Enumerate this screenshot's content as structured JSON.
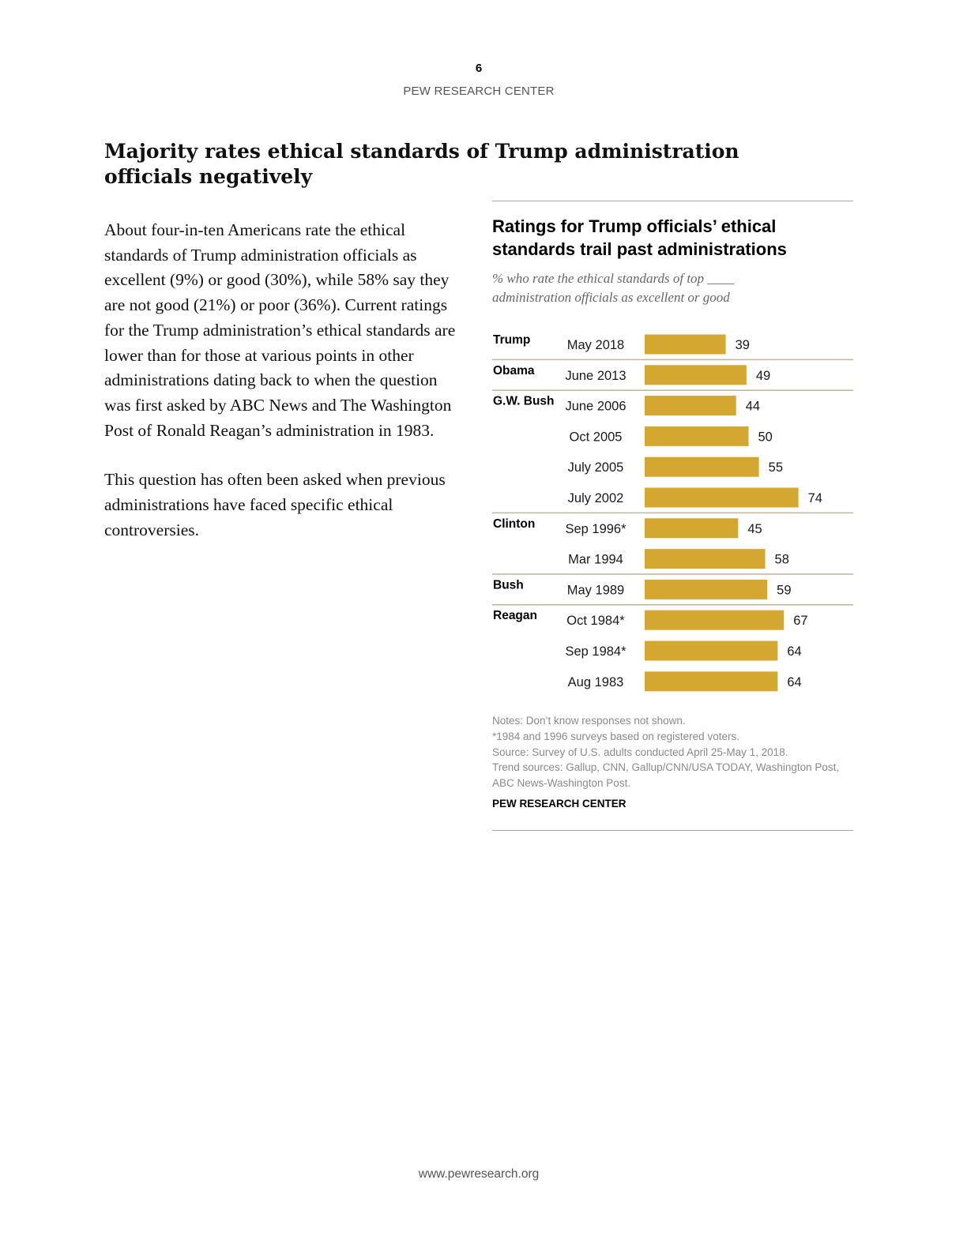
{
  "page": {
    "number": "6",
    "org": "PEW RESEARCH CENTER",
    "heading": "Majority rates ethical standards of Trump administration officials negatively",
    "paragraphs": [
      "About four-in-ten Americans rate the ethical standards of Trump administration officials as excellent (9%) or good (30%), while 58% say they are not good (21%) or poor (36%). Current ratings for the Trump administration’s ethical standards are lower than for those at various points in other administrations dating back to when the question was first asked by ABC News and The Washington Post of Ronald Reagan’s administration in 1983.",
      "This question has often been asked when previous administrations have faced specific ethical controversies."
    ],
    "footer_url": "www.pewresearch.org"
  },
  "chart_data": {
    "type": "bar",
    "orientation": "horizontal",
    "title": "Ratings for Trump officials’ ethical standards trail past administrations",
    "subtitle": "% who rate the ethical standards of top ____ administration officials as excellent or good",
    "bar_color": "#d4a830",
    "rows": [
      {
        "group": "Trump",
        "date": "May 2018",
        "value": 39
      },
      {
        "group": "Obama",
        "date": "June 2013",
        "value": 49
      },
      {
        "group": "G.W. Bush",
        "date": "June 2006",
        "value": 44
      },
      {
        "group": "",
        "date": "Oct 2005",
        "value": 50
      },
      {
        "group": "",
        "date": "July 2005",
        "value": 55
      },
      {
        "group": "",
        "date": "July 2002",
        "value": 74
      },
      {
        "group": "Clinton",
        "date": "Sep 1996*",
        "value": 45
      },
      {
        "group": "",
        "date": "Mar 1994",
        "value": 58
      },
      {
        "group": "Bush",
        "date": "May 1989",
        "value": 59
      },
      {
        "group": "Reagan",
        "date": "Oct 1984*",
        "value": 67
      },
      {
        "group": "",
        "date": "Sep 1984*",
        "value": 64
      },
      {
        "group": "",
        "date": "Aug 1983",
        "value": 64
      }
    ],
    "notes": [
      "Notes: Don’t know responses not shown.",
      "*1984 and 1996 surveys based on registered voters.",
      "Source: Survey of U.S. adults conducted April 25-May 1, 2018.",
      "Trend sources: Gallup, CNN, Gallup/CNN/USA TODAY, Washington Post, ABC News-Washington Post."
    ],
    "source": "PEW RESEARCH CENTER"
  }
}
